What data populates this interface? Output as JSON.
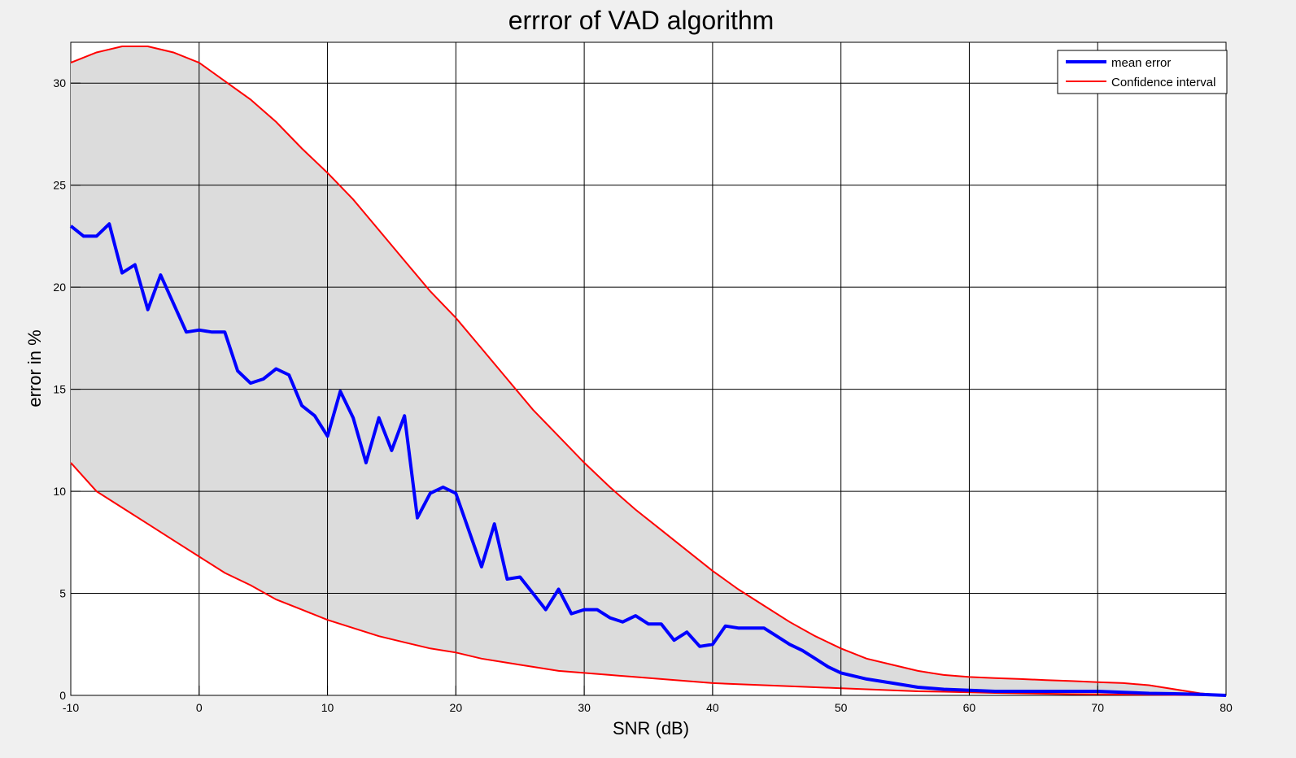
{
  "chart_data": {
    "type": "line",
    "title": "errror of VAD algorithm",
    "xlabel": "SNR (dB)",
    "ylabel": "error in %",
    "xlim": [
      -10,
      80
    ],
    "ylim": [
      0,
      32
    ],
    "xticks": [
      -10,
      0,
      10,
      20,
      30,
      40,
      50,
      60,
      70,
      80
    ],
    "yticks": [
      0,
      5,
      10,
      15,
      20,
      25,
      30
    ],
    "grid": true,
    "legend_position": "top-right",
    "legend": [
      "mean error",
      "Confidence interval"
    ],
    "colors": {
      "mean": "#0000ff",
      "ci": "#ff0000",
      "fill": "#dcdcdc",
      "background": "#ffffff"
    },
    "series": [
      {
        "name": "mean error",
        "x": [
          -10,
          -9,
          -8,
          -7,
          -6,
          -5,
          -4,
          -3,
          -2,
          -1,
          0,
          1,
          2,
          3,
          4,
          5,
          6,
          7,
          8,
          9,
          10,
          11,
          12,
          13,
          14,
          15,
          16,
          17,
          18,
          19,
          20,
          21,
          22,
          23,
          24,
          25,
          26,
          27,
          28,
          29,
          30,
          31,
          32,
          33,
          34,
          35,
          36,
          37,
          38,
          39,
          40,
          41,
          42,
          43,
          44,
          45,
          46,
          47,
          48,
          49,
          50,
          52,
          54,
          56,
          58,
          60,
          62,
          64,
          66,
          68,
          70,
          72,
          74,
          76,
          78,
          80
        ],
        "y": [
          23.0,
          22.5,
          22.5,
          23.1,
          20.7,
          21.1,
          18.9,
          20.6,
          19.2,
          17.8,
          17.9,
          17.8,
          17.8,
          15.9,
          15.3,
          15.5,
          16.0,
          15.7,
          14.2,
          13.7,
          12.7,
          14.9,
          13.6,
          11.4,
          13.6,
          12.0,
          13.7,
          8.7,
          9.9,
          10.2,
          9.9,
          8.1,
          6.3,
          8.4,
          5.7,
          5.8,
          5.0,
          4.2,
          5.2,
          4.0,
          4.2,
          4.2,
          3.8,
          3.6,
          3.9,
          3.5,
          3.5,
          2.7,
          3.1,
          2.4,
          2.5,
          3.4,
          3.3,
          3.3,
          3.3,
          2.9,
          2.5,
          2.2,
          1.8,
          1.4,
          1.1,
          0.8,
          0.6,
          0.4,
          0.3,
          0.25,
          0.2,
          0.2,
          0.2,
          0.2,
          0.2,
          0.15,
          0.1,
          0.08,
          0.05,
          0.0
        ]
      },
      {
        "name": "Confidence interval",
        "x": [
          -10,
          -8,
          -6,
          -4,
          -2,
          0,
          2,
          4,
          6,
          8,
          10,
          12,
          14,
          16,
          18,
          20,
          22,
          24,
          26,
          28,
          30,
          32,
          34,
          36,
          38,
          40,
          42,
          44,
          46,
          48,
          50,
          52,
          54,
          56,
          58,
          60,
          62,
          64,
          66,
          68,
          70,
          72,
          74,
          76,
          78,
          80
        ],
        "y": [
          31.0,
          31.5,
          31.8,
          31.8,
          31.5,
          31.0,
          30.1,
          29.2,
          28.1,
          26.8,
          25.6,
          24.3,
          22.8,
          21.3,
          19.8,
          18.5,
          17.0,
          15.5,
          14.0,
          12.7,
          11.4,
          10.2,
          9.1,
          8.1,
          7.1,
          6.1,
          5.2,
          4.4,
          3.6,
          2.9,
          2.3,
          1.8,
          1.5,
          1.2,
          1.0,
          0.9,
          0.85,
          0.8,
          0.75,
          0.7,
          0.65,
          0.6,
          0.5,
          0.3,
          0.1,
          0.0
        ]
      },
      {
        "name": "Confidence interval",
        "x": [
          -10,
          -8,
          -6,
          -4,
          -2,
          0,
          2,
          4,
          6,
          8,
          10,
          12,
          14,
          16,
          18,
          20,
          22,
          24,
          26,
          28,
          30,
          32,
          34,
          36,
          38,
          40,
          42,
          44,
          46,
          48,
          50,
          52,
          54,
          56,
          58,
          60,
          62,
          64,
          66,
          68,
          70,
          72,
          74,
          76,
          78,
          80
        ],
        "y": [
          11.4,
          10.0,
          9.2,
          8.4,
          7.6,
          6.8,
          6.0,
          5.4,
          4.7,
          4.2,
          3.7,
          3.3,
          2.9,
          2.6,
          2.3,
          2.1,
          1.8,
          1.6,
          1.4,
          1.2,
          1.1,
          1.0,
          0.9,
          0.8,
          0.7,
          0.6,
          0.55,
          0.5,
          0.45,
          0.4,
          0.35,
          0.3,
          0.25,
          0.2,
          0.18,
          0.15,
          0.12,
          0.1,
          0.08,
          0.06,
          0.05,
          0.04,
          0.03,
          0.02,
          0.01,
          0.0
        ]
      }
    ]
  }
}
